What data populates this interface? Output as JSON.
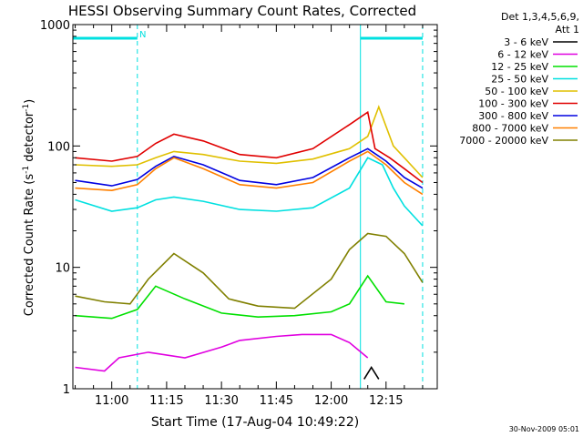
{
  "chart_data": {
    "type": "line",
    "title": "HESSI Observing Summary Count Rates, Corrected",
    "xlabel": "Start Time (17-Aug-04 10:49:22)",
    "ylabel": "Corrected Count Rate (s⁻¹ detector⁻¹)",
    "ylabel_main": "Corrected Count Rate (s",
    "ylabel_sup1": "-1",
    "ylabel_mid": " detector",
    "ylabel_sup2": "-1",
    "ylabel_end": ")",
    "yscale": "log",
    "ylim": [
      1,
      1000
    ],
    "xlim": [
      "10:49:22",
      "12:29:00"
    ],
    "x_ticks": [
      "11:00",
      "11:15",
      "11:30",
      "11:45",
      "12:00",
      "12:15"
    ],
    "y_ticks": [
      "1",
      "10",
      "100",
      "1000"
    ],
    "legend": {
      "header1": "Det 1,3,4,5,6,9,",
      "header2": "Att 1",
      "placement": "right-outside"
    },
    "annotations": {
      "night_marker": "N",
      "timestamp": "30-Nov-2009 05:01"
    },
    "night_intervals": [
      [
        "10:49:22",
        "11:07:00"
      ],
      [
        "12:08:00",
        "12:25:00"
      ]
    ],
    "series": [
      {
        "name": "3 - 6 keV",
        "color": "#000000",
        "x": [
          "12:09",
          "12:11",
          "12:13"
        ],
        "y": [
          1.2,
          1.5,
          1.2
        ]
      },
      {
        "name": "6 - 12 keV",
        "color": "#e000e0",
        "x": [
          "10:50",
          "10:58",
          "11:02",
          "11:10",
          "11:20",
          "11:30",
          "11:35",
          "11:45",
          "11:52",
          "12:00",
          "12:05",
          "12:10"
        ],
        "y": [
          1.5,
          1.4,
          1.8,
          2.0,
          1.8,
          2.2,
          2.5,
          2.7,
          2.8,
          2.8,
          2.4,
          1.8
        ]
      },
      {
        "name": "12 - 25 keV",
        "color": "#00e000",
        "x": [
          "10:50",
          "11:00",
          "11:07",
          "11:12",
          "11:20",
          "11:30",
          "11:40",
          "11:50",
          "12:00",
          "12:05",
          "12:10",
          "12:15",
          "12:20"
        ],
        "y": [
          4.0,
          3.8,
          4.5,
          7.0,
          5.5,
          4.2,
          3.9,
          4.0,
          4.3,
          5.0,
          8.5,
          5.2,
          5.0
        ]
      },
      {
        "name": "25 - 50 keV",
        "color": "#00e0e0",
        "x": [
          "10:50",
          "11:00",
          "11:07",
          "11:12",
          "11:17",
          "11:25",
          "11:35",
          "11:45",
          "11:55",
          "12:05",
          "12:10",
          "12:14",
          "12:17",
          "12:20",
          "12:25"
        ],
        "y": [
          36,
          29,
          31,
          36,
          38,
          35,
          30,
          29,
          31,
          45,
          80,
          70,
          45,
          32,
          22
        ]
      },
      {
        "name": "50 - 100 keV",
        "color": "#e0c000",
        "x": [
          "10:50",
          "11:00",
          "11:07",
          "11:12",
          "11:17",
          "11:25",
          "11:35",
          "11:45",
          "11:55",
          "12:05",
          "12:10",
          "12:13",
          "12:17",
          "12:20",
          "12:25"
        ],
        "y": [
          70,
          68,
          70,
          80,
          90,
          85,
          75,
          72,
          78,
          95,
          120,
          210,
          100,
          80,
          55
        ]
      },
      {
        "name": "100 - 300 keV",
        "color": "#e00000",
        "x": [
          "10:50",
          "11:00",
          "11:07",
          "11:12",
          "11:17",
          "11:25",
          "11:35",
          "11:45",
          "11:55",
          "12:05",
          "12:10",
          "12:12",
          "12:16",
          "12:20",
          "12:25"
        ],
        "y": [
          80,
          75,
          82,
          105,
          125,
          110,
          85,
          80,
          95,
          150,
          190,
          95,
          80,
          65,
          50
        ]
      },
      {
        "name": "300 - 800 keV",
        "color": "#0000e0",
        "x": [
          "10:50",
          "11:00",
          "11:07",
          "11:12",
          "11:17",
          "11:25",
          "11:35",
          "11:45",
          "11:55",
          "12:05",
          "12:10",
          "12:15",
          "12:20",
          "12:25"
        ],
        "y": [
          52,
          47,
          53,
          68,
          82,
          70,
          52,
          48,
          55,
          80,
          95,
          75,
          55,
          45
        ]
      },
      {
        "name": "800 - 7000 keV",
        "color": "#ff8000",
        "x": [
          "10:50",
          "11:00",
          "11:07",
          "11:12",
          "11:17",
          "11:25",
          "11:35",
          "11:45",
          "11:55",
          "12:05",
          "12:10",
          "12:15",
          "12:20",
          "12:25"
        ],
        "y": [
          45,
          43,
          48,
          65,
          80,
          65,
          48,
          45,
          50,
          75,
          90,
          70,
          50,
          40
        ]
      },
      {
        "name": "7000 - 20000 keV",
        "color": "#808000",
        "x": [
          "10:50",
          "10:58",
          "11:05",
          "11:10",
          "11:17",
          "11:25",
          "11:32",
          "11:40",
          "11:50",
          "12:00",
          "12:05",
          "12:10",
          "12:15",
          "12:20",
          "12:25"
        ],
        "y": [
          5.8,
          5.2,
          5.0,
          8.0,
          13.0,
          9.0,
          5.5,
          4.8,
          4.6,
          8.0,
          14.0,
          19.0,
          18.0,
          13.0,
          7.5
        ]
      }
    ]
  }
}
